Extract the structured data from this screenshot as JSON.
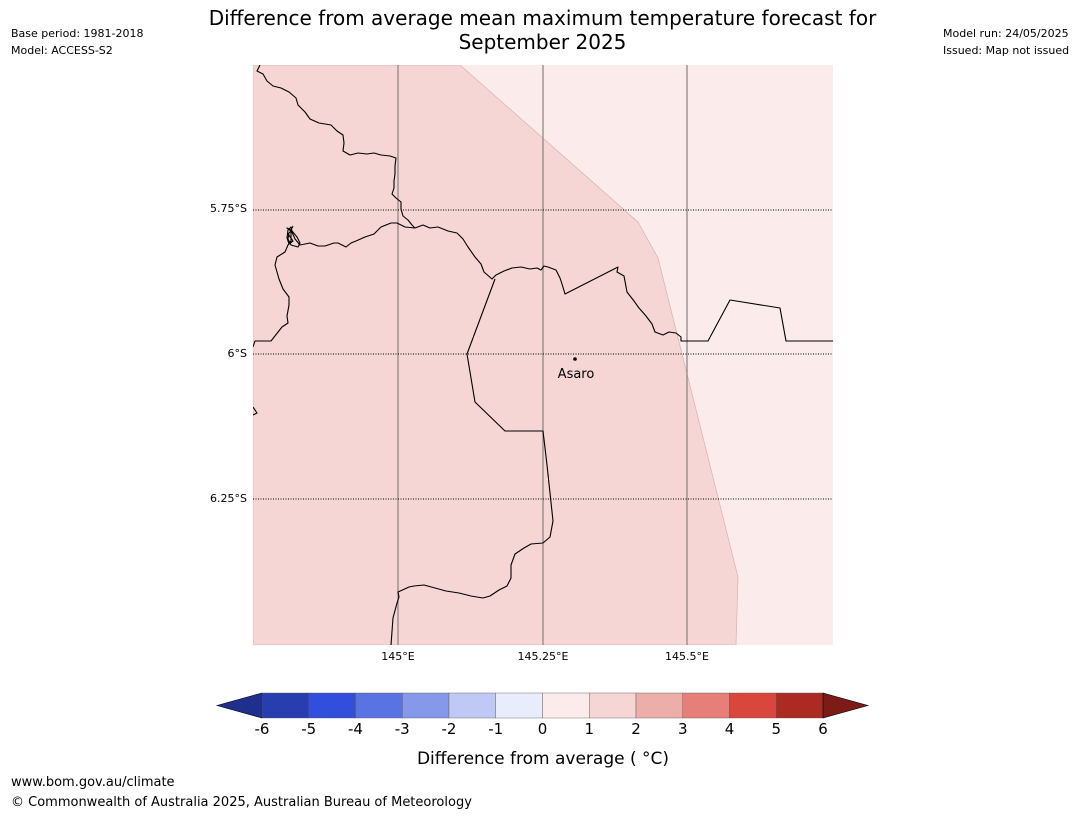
{
  "title": {
    "line1": "Difference from average mean maximum temperature forecast for",
    "line2": "September 2025"
  },
  "meta_left": {
    "base_period": "Base period: 1981-2018",
    "model": "Model: ACCESS-S2"
  },
  "meta_right": {
    "model_run": "Model run: 24/05/2025",
    "issued": "Issued: Map not issued"
  },
  "map": {
    "lat_labels": [
      "5.75°S",
      "6°S",
      "6.25°S"
    ],
    "lon_labels": [
      "145°E",
      "145.25°E",
      "145.5°E"
    ],
    "place_label": "Asaro",
    "fill_colors": {
      "band_1_2": "#f5d6d4",
      "band_0_1": "#fbeceb"
    }
  },
  "colorbar": {
    "ticks": [
      "-6",
      "-5",
      "-4",
      "-3",
      "-2",
      "-1",
      "0",
      "1",
      "2",
      "3",
      "4",
      "5",
      "6"
    ],
    "colors": [
      "#1f2f8c",
      "#283db0",
      "#314fdc",
      "#5a73e3",
      "#8698ea",
      "#c0c8f5",
      "#e8ecfb",
      "#fbeceb",
      "#f5d6d4",
      "#ecaea8",
      "#e57f78",
      "#d9463c",
      "#ad2a22",
      "#7d1b16"
    ],
    "label": "Difference from average ( °C)"
  },
  "footer": {
    "url": "www.bom.gov.au/climate",
    "copyright": "© Commonwealth of Australia 2025, Australian Bureau of Meteorology"
  }
}
